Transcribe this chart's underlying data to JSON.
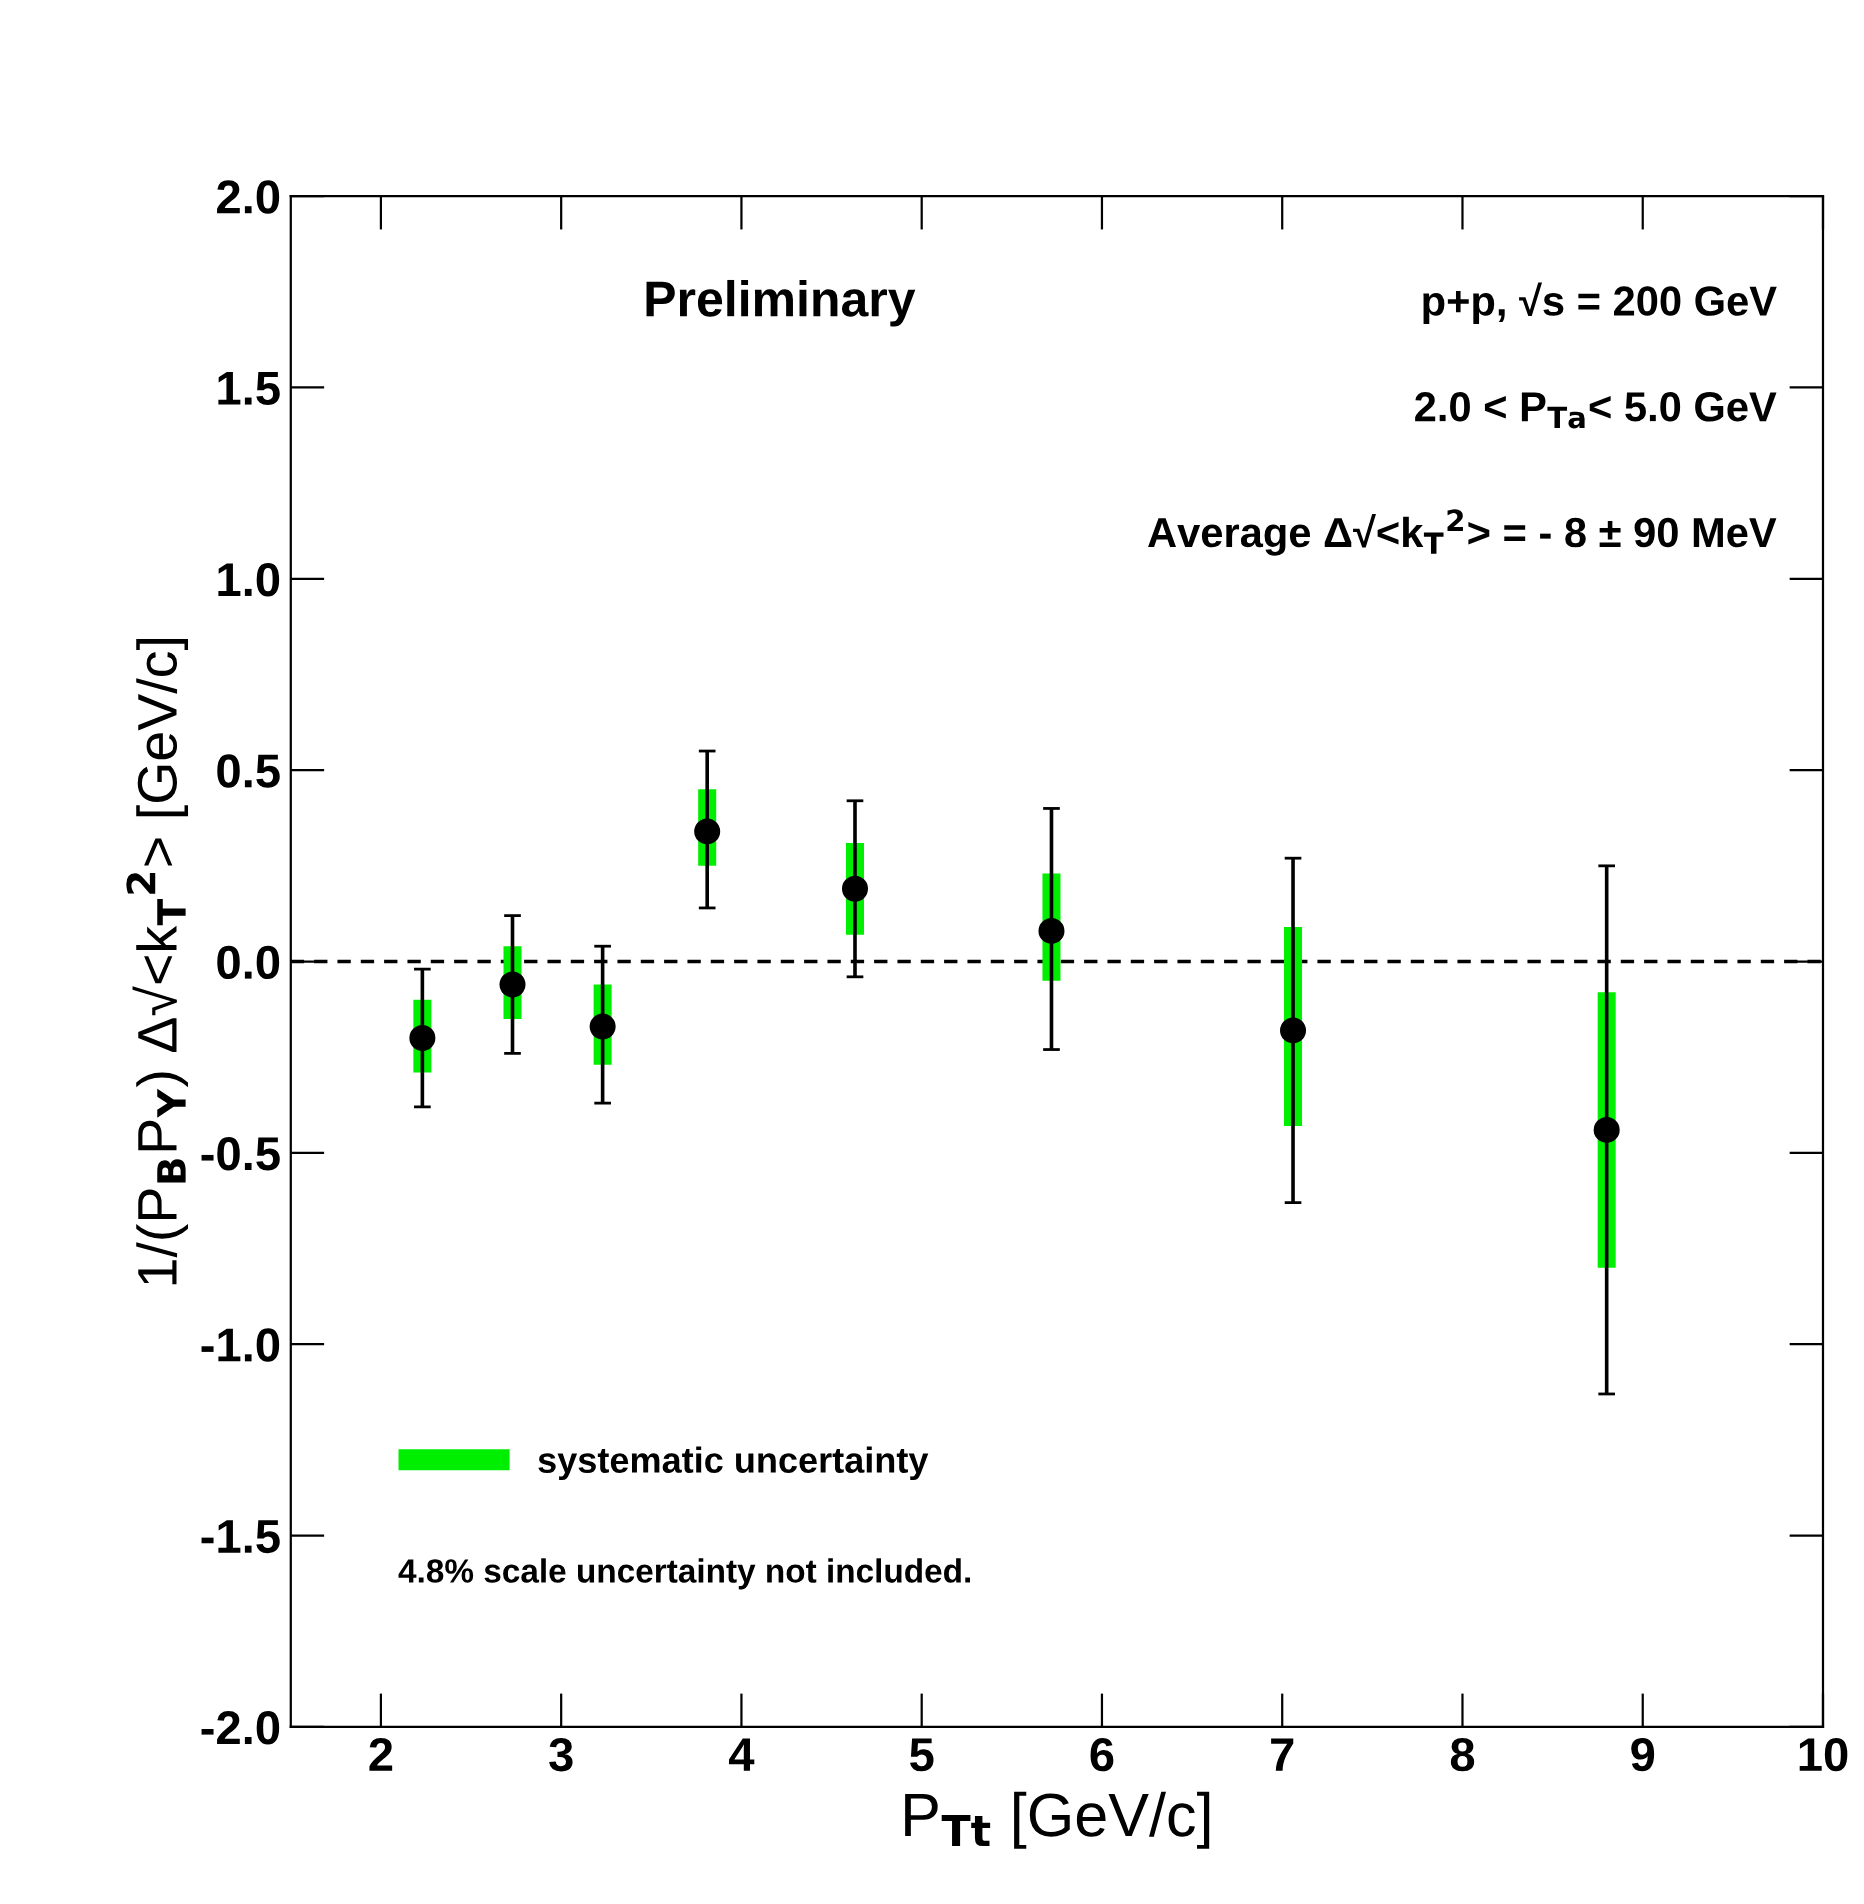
{
  "chart_data": {
    "type": "scatter",
    "xlabel": "P$_{Tt}$ [GeV/c]",
    "ylabel": "1/(P$_{B}$P$_{Y}$) Δ√<k$_{T}$$^{2}$> [GeV/c]",
    "annotations": [
      "Preliminary",
      "p+p, √s = 200 GeV",
      "2.0 < P$_{Ta}$< 5.0 GeV",
      "Average Δ√<k$_{T}$$^{2}$> = - 8 ± 90 MeV",
      "4.8% scale uncertainty not included."
    ],
    "series": [
      {
        "color": "#000000",
        "x": [
          2.23,
          2.73,
          3.23,
          3.81,
          4.63,
          5.72,
          7.06,
          8.8
        ],
        "values": [
          -0.2,
          -0.06,
          -0.17,
          0.34,
          0.19,
          0.08,
          -0.18,
          -0.44
        ],
        "errors": [
          [
            -0.38,
            -0.02
          ],
          [
            -0.24,
            0.12
          ],
          [
            -0.37,
            0.04
          ],
          [
            0.14,
            0.55
          ],
          [
            -0.04,
            0.42
          ],
          [
            -0.23,
            0.4
          ],
          [
            -0.63,
            0.27
          ],
          [
            -1.13,
            0.25
          ]
        ]
      },
      {
        "type": "bar",
        "name": "systematic uncertainty",
        "color": "#00ee00",
        "x": [
          2.23,
          2.73,
          3.23,
          3.81,
          4.63,
          5.72,
          7.06,
          8.8
        ],
        "base": [
          -0.29,
          -0.15,
          -0.27,
          0.25,
          0.07,
          -0.05,
          -0.43,
          -0.8
        ],
        "values": [
          0.19,
          0.19,
          0.21,
          0.2,
          0.24,
          0.28,
          0.52,
          0.72
        ]
      }
    ],
    "xlim": [
      1.5,
      10
    ],
    "xticks": [
      2,
      3,
      4,
      5,
      6,
      7,
      8,
      9,
      10
    ],
    "ylim": [
      -2.0,
      2.0
    ],
    "yticks": [
      {
        "value": -2,
        "label": "-2.0"
      },
      {
        "value": -1.5,
        "label": "-1.5"
      },
      {
        "value": -1,
        "label": "-1.0"
      },
      {
        "value": -0.5,
        "label": "-0.5"
      },
      {
        "value": 0,
        "label": "0.0"
      },
      {
        "value": 0.5,
        "label": "0.5"
      },
      {
        "value": 1,
        "label": "1.0"
      },
      {
        "value": 1.5,
        "label": "1.5"
      },
      {
        "value": 2,
        "label": "2.0"
      }
    ],
    "ref_lines": [
      {
        "axis": "y",
        "value": 0,
        "line_style": "dashed",
        "color": "#000000"
      }
    ],
    "marker": "circle",
    "legend": "bottom left",
    "grid": false
  }
}
